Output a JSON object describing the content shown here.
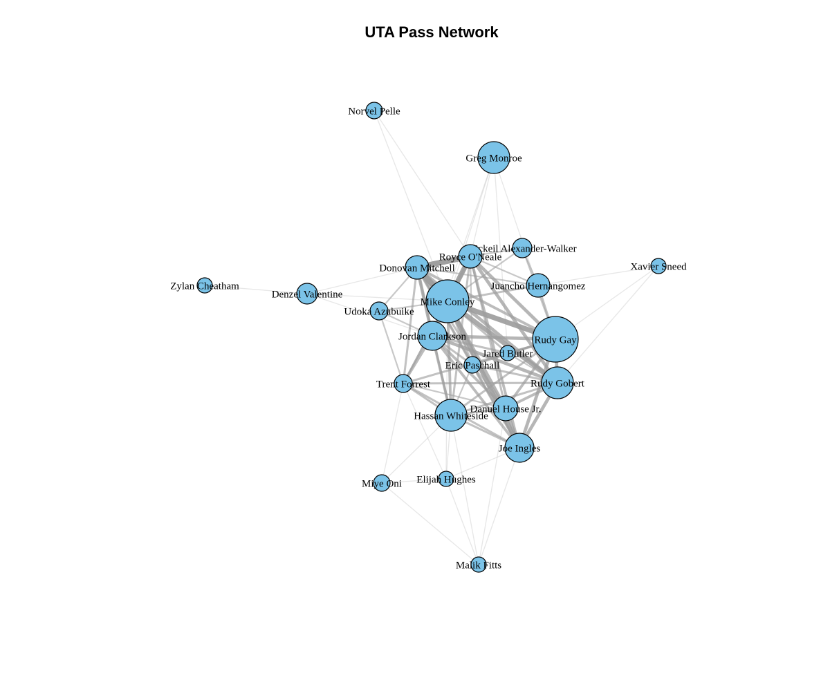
{
  "title": "UTA Pass Network",
  "colors": {
    "node_fill": "#7BC3E8",
    "node_stroke": "#000000",
    "edge": "#9E9E9E",
    "background": "#FFFFFF"
  },
  "nodes": [
    {
      "id": "norvel-pelle",
      "label": "Norvel Pelle"
    },
    {
      "id": "greg-monroe",
      "label": "Greg Monroe"
    },
    {
      "id": "nickeil-alexander-walker",
      "label": "Nickeil Alexander-Walker"
    },
    {
      "id": "royce-oneale",
      "label": "Royce O'Neale"
    },
    {
      "id": "donovan-mitchell",
      "label": "Donovan Mitchell"
    },
    {
      "id": "xavier-sneed",
      "label": "Xavier Sneed"
    },
    {
      "id": "juancho-hernangomez",
      "label": "Juancho Hernangomez"
    },
    {
      "id": "zylan-cheatham",
      "label": "Zylan Cheatham"
    },
    {
      "id": "denzel-valentine",
      "label": "Denzel Valentine"
    },
    {
      "id": "mike-conley",
      "label": "Mike Conley"
    },
    {
      "id": "udoka-azubuike",
      "label": "Udoka Azubuike"
    },
    {
      "id": "jordan-clarkson",
      "label": "Jordan Clarkson"
    },
    {
      "id": "rudy-gay",
      "label": "Rudy Gay"
    },
    {
      "id": "jared-butler",
      "label": "Jared Butler"
    },
    {
      "id": "eric-paschall",
      "label": "Eric Paschall"
    },
    {
      "id": "trent-forrest",
      "label": "Trent Forrest"
    },
    {
      "id": "rudy-gobert",
      "label": "Rudy Gobert"
    },
    {
      "id": "danuel-house-jr",
      "label": "Danuel House Jr."
    },
    {
      "id": "hassan-whiteside",
      "label": "Hassan Whiteside"
    },
    {
      "id": "joe-ingles",
      "label": "Joe Ingles"
    },
    {
      "id": "elijah-hughes",
      "label": "Elijah Hughes"
    },
    {
      "id": "miye-oni",
      "label": "Miye Oni"
    },
    {
      "id": "malik-fitts",
      "label": "Malik Fitts"
    }
  ],
  "edges": [
    [
      "mike-conley",
      "rudy-gay",
      8
    ],
    [
      "mike-conley",
      "rudy-gobert",
      7
    ],
    [
      "mike-conley",
      "donovan-mitchell",
      9
    ],
    [
      "mike-conley",
      "royce-oneale",
      8
    ],
    [
      "mike-conley",
      "jordan-clarkson",
      6
    ],
    [
      "mike-conley",
      "joe-ingles",
      7
    ],
    [
      "mike-conley",
      "danuel-house-jr",
      5
    ],
    [
      "mike-conley",
      "hassan-whiteside",
      4
    ],
    [
      "mike-conley",
      "trent-forrest",
      3
    ],
    [
      "mike-conley",
      "eric-paschall",
      3
    ],
    [
      "mike-conley",
      "jared-butler",
      3
    ],
    [
      "mike-conley",
      "juancho-hernangomez",
      3
    ],
    [
      "mike-conley",
      "nickeil-alexander-walker",
      2
    ],
    [
      "mike-conley",
      "udoka-azubuike",
      2
    ],
    [
      "mike-conley",
      "greg-monroe",
      1
    ],
    [
      "mike-conley",
      "denzel-valentine",
      1
    ],
    [
      "mike-conley",
      "elijah-hughes",
      1
    ],
    [
      "donovan-mitchell",
      "royce-oneale",
      9
    ],
    [
      "donovan-mitchell",
      "rudy-gobert",
      5
    ],
    [
      "donovan-mitchell",
      "jordan-clarkson",
      5
    ],
    [
      "donovan-mitchell",
      "rudy-gay",
      4
    ],
    [
      "donovan-mitchell",
      "joe-ingles",
      4
    ],
    [
      "donovan-mitchell",
      "trent-forrest",
      3
    ],
    [
      "donovan-mitchell",
      "hassan-whiteside",
      3
    ],
    [
      "donovan-mitchell",
      "danuel-house-jr",
      3
    ],
    [
      "donovan-mitchell",
      "udoka-azubuike",
      2
    ],
    [
      "donovan-mitchell",
      "eric-paschall",
      2
    ],
    [
      "donovan-mitchell",
      "juancho-hernangomez",
      2
    ],
    [
      "donovan-mitchell",
      "denzel-valentine",
      1
    ],
    [
      "royce-oneale",
      "rudy-gay",
      5
    ],
    [
      "royce-oneale",
      "rudy-gobert",
      5
    ],
    [
      "royce-oneale",
      "jordan-clarkson",
      4
    ],
    [
      "royce-oneale",
      "joe-ingles",
      4
    ],
    [
      "royce-oneale",
      "hassan-whiteside",
      3
    ],
    [
      "royce-oneale",
      "danuel-house-jr",
      3
    ],
    [
      "royce-oneale",
      "juancho-hernangomez",
      2
    ],
    [
      "royce-oneale",
      "trent-forrest",
      2
    ],
    [
      "royce-oneale",
      "eric-paschall",
      2
    ],
    [
      "royce-oneale",
      "nickeil-alexander-walker",
      2
    ],
    [
      "royce-oneale",
      "greg-monroe",
      1
    ],
    [
      "jordan-clarkson",
      "rudy-gay",
      5
    ],
    [
      "jordan-clarkson",
      "rudy-gobert",
      5
    ],
    [
      "jordan-clarkson",
      "joe-ingles",
      4
    ],
    [
      "jordan-clarkson",
      "danuel-house-jr",
      4
    ],
    [
      "jordan-clarkson",
      "hassan-whiteside",
      4
    ],
    [
      "jordan-clarkson",
      "trent-forrest",
      4
    ],
    [
      "jordan-clarkson",
      "eric-paschall",
      3
    ],
    [
      "jordan-clarkson",
      "jared-butler",
      3
    ],
    [
      "jordan-clarkson",
      "udoka-azubuike",
      2
    ],
    [
      "rudy-gay",
      "rudy-gobert",
      5
    ],
    [
      "rudy-gay",
      "joe-ingles",
      5
    ],
    [
      "rudy-gay",
      "danuel-house-jr",
      4
    ],
    [
      "rudy-gay",
      "hassan-whiteside",
      3
    ],
    [
      "rudy-gay",
      "eric-paschall",
      3
    ],
    [
      "rudy-gay",
      "jared-butler",
      3
    ],
    [
      "rudy-gay",
      "juancho-hernangomez",
      3
    ],
    [
      "rudy-gay",
      "trent-forrest",
      3
    ],
    [
      "rudy-gay",
      "nickeil-alexander-walker",
      2
    ],
    [
      "rudy-gay",
      "xavier-sneed",
      1
    ],
    [
      "rudy-gobert",
      "joe-ingles",
      5
    ],
    [
      "rudy-gobert",
      "danuel-house-jr",
      4
    ],
    [
      "rudy-gobert",
      "hassan-whiteside",
      3
    ],
    [
      "rudy-gobert",
      "trent-forrest",
      3
    ],
    [
      "rudy-gobert",
      "eric-paschall",
      3
    ],
    [
      "rudy-gobert",
      "jared-butler",
      2
    ],
    [
      "joe-ingles",
      "danuel-house-jr",
      5
    ],
    [
      "joe-ingles",
      "hassan-whiteside",
      3
    ],
    [
      "joe-ingles",
      "trent-forrest",
      3
    ],
    [
      "joe-ingles",
      "eric-paschall",
      2
    ],
    [
      "joe-ingles",
      "elijah-hughes",
      1
    ],
    [
      "joe-ingles",
      "malik-fitts",
      1
    ],
    [
      "danuel-house-jr",
      "hassan-whiteside",
      3
    ],
    [
      "danuel-house-jr",
      "eric-paschall",
      2
    ],
    [
      "danuel-house-jr",
      "trent-forrest",
      2
    ],
    [
      "hassan-whiteside",
      "trent-forrest",
      3
    ],
    [
      "hassan-whiteside",
      "eric-paschall",
      2
    ],
    [
      "hassan-whiteside",
      "elijah-hughes",
      1
    ],
    [
      "hassan-whiteside",
      "miye-oni",
      1
    ],
    [
      "trent-forrest",
      "udoka-azubuike",
      2
    ],
    [
      "trent-forrest",
      "miye-oni",
      1
    ],
    [
      "trent-forrest",
      "elijah-hughes",
      1
    ],
    [
      "eric-paschall",
      "jared-butler",
      2
    ],
    [
      "juancho-hernangomez",
      "nickeil-alexander-walker",
      2
    ],
    [
      "greg-monroe",
      "jared-butler",
      1
    ],
    [
      "greg-monroe",
      "rudy-gay",
      1
    ],
    [
      "greg-monroe",
      "jordan-clarkson",
      1
    ],
    [
      "norvel-pelle",
      "royce-oneale",
      1
    ],
    [
      "norvel-pelle",
      "mike-conley",
      1
    ],
    [
      "xavier-sneed",
      "juancho-hernangomez",
      1
    ],
    [
      "xavier-sneed",
      "rudy-gobert",
      1
    ],
    [
      "zylan-cheatham",
      "denzel-valentine",
      1
    ],
    [
      "denzel-valentine",
      "jordan-clarkson",
      1
    ],
    [
      "elijah-hughes",
      "malik-fitts",
      1
    ],
    [
      "miye-oni",
      "malik-fitts",
      1
    ],
    [
      "miye-oni",
      "elijah-hughes",
      1
    ],
    [
      "malik-fitts",
      "danuel-house-jr",
      1
    ],
    [
      "malik-fitts",
      "hassan-whiteside",
      1
    ]
  ]
}
